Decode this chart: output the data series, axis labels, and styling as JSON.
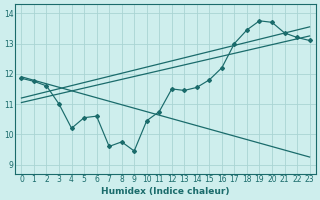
{
  "title": "",
  "xlabel": "Humidex (Indice chaleur)",
  "ylabel": "",
  "background_color": "#ceeeed",
  "line_color": "#1a6b6b",
  "grid_color": "#aad4d3",
  "xlim": [
    -0.5,
    23.5
  ],
  "ylim": [
    8.7,
    14.3
  ],
  "yticks": [
    9,
    10,
    11,
    12,
    13,
    14
  ],
  "xticks": [
    0,
    1,
    2,
    3,
    4,
    5,
    6,
    7,
    8,
    9,
    10,
    11,
    12,
    13,
    14,
    15,
    16,
    17,
    18,
    19,
    20,
    21,
    22,
    23
  ],
  "data_line": [
    11.85,
    11.75,
    11.6,
    11.0,
    10.2,
    10.55,
    10.6,
    9.6,
    9.75,
    9.45,
    10.45,
    10.75,
    11.5,
    11.45,
    11.55,
    11.8,
    12.2,
    13.0,
    13.45,
    13.75,
    13.7,
    13.35,
    13.2,
    13.1
  ],
  "asc_line1_x": [
    0,
    23
  ],
  "asc_line1_y": [
    11.05,
    13.25
  ],
  "asc_line2_x": [
    0,
    23
  ],
  "asc_line2_y": [
    11.2,
    13.55
  ],
  "desc_line_x": [
    0,
    23
  ],
  "desc_line_y": [
    11.9,
    9.25
  ]
}
